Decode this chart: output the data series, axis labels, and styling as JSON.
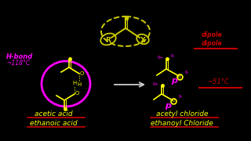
{
  "bg_color": "#000000",
  "top_structure_label_R": "R",
  "top_structure_label_X": "X",
  "top_structure_color": "#cccc00",
  "hbond_label": "H-bond",
  "hbond_color": "#ff00ff",
  "temp_left": "~118°C",
  "temp_left_color": "#ff00ff",
  "dipole_label": "dipole\ndipole",
  "dipole_color": "#cc0000",
  "temp_right": "~51°C",
  "temp_right_color": "#cc0000",
  "left_bottom_label1": "acetic acid",
  "left_bottom_label2": "ethanoic acid",
  "left_bottom_color": "#ffff00",
  "left_bottom_red_color": "#cc0000",
  "right_bottom_label1": "acetyl chloride",
  "right_bottom_label2": "ethanoyl Chloride",
  "arrow_color": "#cccccc",
  "ellipse_color": "#ff00ff",
  "struct_color": "#ffff00",
  "struct_color2": "#ff00ff"
}
